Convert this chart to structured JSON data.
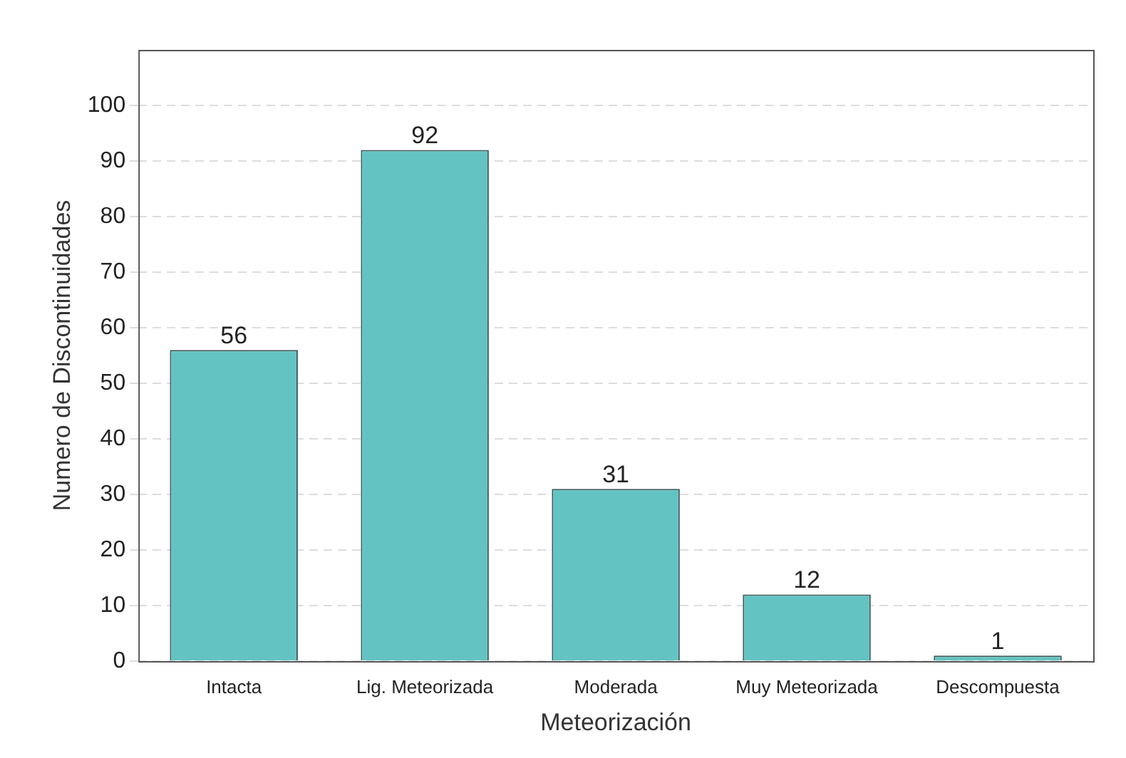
{
  "chart_data": {
    "type": "bar",
    "xlabel": "Meteorización",
    "ylabel": "Numero de Discontinuidades",
    "categories": [
      "Intacta",
      "Lig. Meteorizada",
      "Moderada",
      "Muy Meteorizada",
      "Descompuesta"
    ],
    "values": [
      56,
      92,
      31,
      12,
      1
    ],
    "color": "#63c3c3",
    "ylim": [
      0,
      110
    ],
    "yticks": [
      0,
      10,
      20,
      30,
      40,
      50,
      60,
      70,
      80,
      90,
      100
    ],
    "grid": "y",
    "data_labels": true,
    "legend": false
  }
}
